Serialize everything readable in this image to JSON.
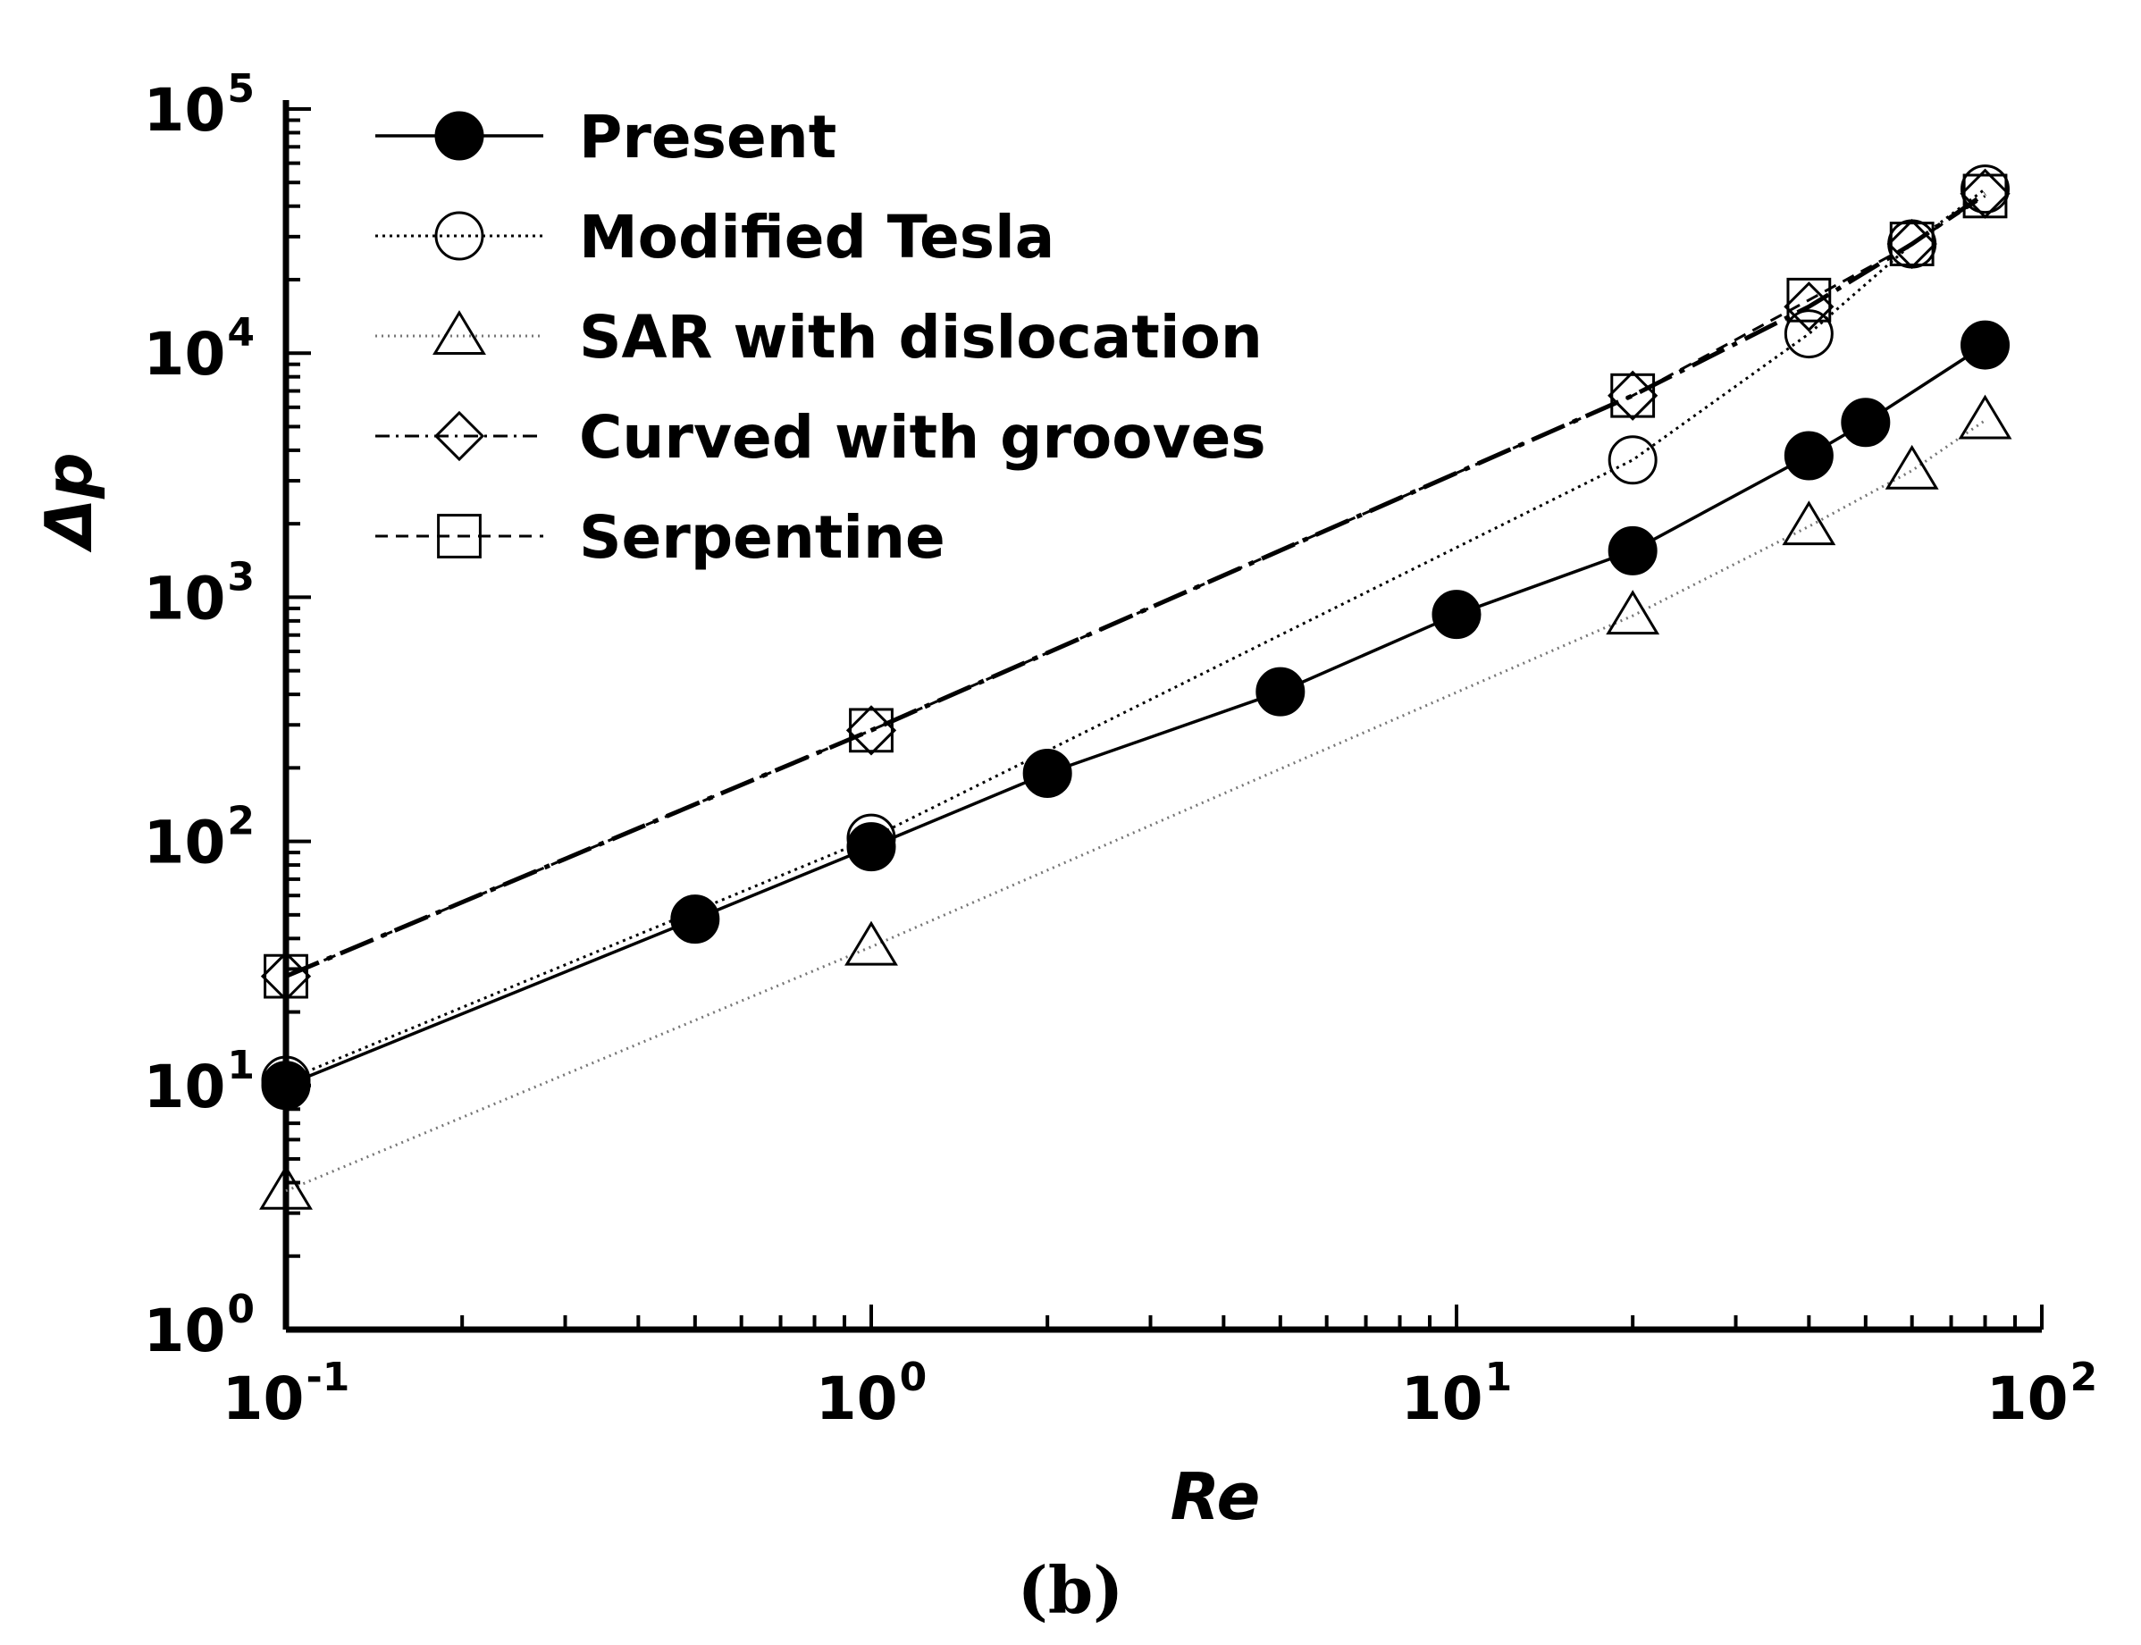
{
  "chart_data": {
    "type": "line",
    "xscale": "log",
    "yscale": "log",
    "xlim": [
      0.1,
      100
    ],
    "ylim": [
      1,
      100000
    ],
    "xlabel": "Re",
    "ylabel": "Δp",
    "caption": "(b)",
    "grid": false,
    "legend_position": "top-left",
    "x_ticks": [
      {
        "base": "10",
        "exp": "-1"
      },
      {
        "base": "10",
        "exp": "0"
      },
      {
        "base": "10",
        "exp": "1"
      },
      {
        "base": "10",
        "exp": "2"
      }
    ],
    "y_ticks": [
      {
        "base": "10",
        "exp": "0"
      },
      {
        "base": "10",
        "exp": "1"
      },
      {
        "base": "10",
        "exp": "2"
      },
      {
        "base": "10",
        "exp": "3"
      },
      {
        "base": "10",
        "exp": "4"
      },
      {
        "base": "10",
        "exp": "5"
      }
    ],
    "series": [
      {
        "name": "Present",
        "marker": "filled-circle",
        "line": "solid",
        "x": [
          0.1,
          0.5,
          1,
          2,
          5,
          10,
          20,
          40,
          50,
          80
        ],
        "y": [
          10,
          48,
          95,
          190,
          410,
          850,
          1550,
          3800,
          5200,
          10800
        ]
      },
      {
        "name": "Modified Tesla",
        "marker": "open-circle",
        "line": "dotted",
        "x": [
          0.1,
          1,
          20,
          40,
          60,
          80
        ],
        "y": [
          10.5,
          103,
          3650,
          12000,
          28000,
          47000
        ]
      },
      {
        "name": "SAR with dislocation",
        "marker": "open-triangle",
        "line": "dotted-light",
        "x": [
          0.1,
          1,
          20,
          40,
          60,
          80
        ],
        "y": [
          3.7,
          37,
          840,
          1950,
          3300,
          5300
        ]
      },
      {
        "name": "Curved with grooves",
        "marker": "open-diamond",
        "line": "dashdot",
        "x": [
          0.1,
          1,
          20,
          40,
          60,
          80
        ],
        "y": [
          28,
          285,
          6700,
          15500,
          28000,
          45000
        ]
      },
      {
        "name": "Serpentine",
        "marker": "open-square",
        "line": "dashed",
        "x": [
          0.1,
          1,
          20,
          40,
          60,
          80
        ],
        "y": [
          28,
          285,
          6700,
          16500,
          28000,
          44000
        ]
      }
    ]
  }
}
